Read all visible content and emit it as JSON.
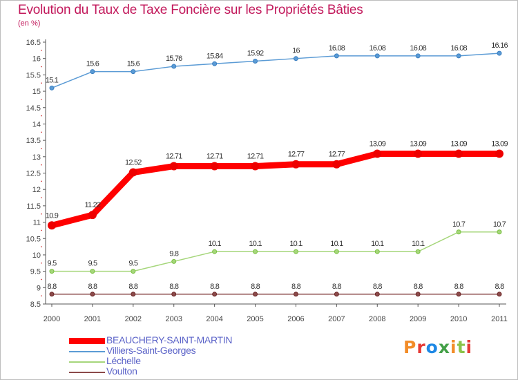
{
  "colors": {
    "title": "#c2185b",
    "legend_text": "#5b63c8",
    "axis": "#555555",
    "grid_tick": "#cc2222",
    "logo": [
      "#f28c28",
      "#e53935",
      "#1e88e5",
      "#43a047",
      "#f28c28",
      "#8bc34a",
      "#e53935"
    ]
  },
  "logo": {
    "text": "Proxiti",
    "letters": [
      "P",
      "r",
      "o",
      "x",
      "i",
      "t",
      "i"
    ]
  },
  "chart_data": {
    "type": "line",
    "title": "Evolution du Taux de Taxe Foncière sur les Propriétés Bâties",
    "ylabel": "(en %)",
    "xlabel": "",
    "ylim": [
      8.5,
      16.5
    ],
    "yticks": [
      8.5,
      9,
      9.5,
      10,
      10.5,
      11,
      11.5,
      12,
      12.5,
      13,
      13.5,
      14,
      14.5,
      15,
      15.5,
      16,
      16.5
    ],
    "ytick_labels": [
      "8.5",
      "9",
      "9.5",
      "10",
      "10.5",
      "11",
      "11.5",
      "12",
      "12.5",
      "13",
      "13.5",
      "14",
      "14.5",
      "15",
      "15.5",
      "16",
      "16.5"
    ],
    "categories": [
      "2000",
      "2001",
      "2002",
      "2003",
      "2004",
      "2005",
      "2006",
      "2007",
      "2008",
      "2009",
      "2010",
      "2011"
    ],
    "series": [
      {
        "name": "Villiers-Saint-Georges",
        "color": "#5b9bd5",
        "marker": "#3a7fc1",
        "values": [
          15.1,
          15.6,
          15.6,
          15.76,
          15.84,
          15.92,
          16,
          16.08,
          16.08,
          16.08,
          16.08,
          16.16
        ],
        "labels": [
          "15.1",
          "15.6",
          "15.6",
          "15.76",
          "15.84",
          "15.92",
          "16",
          "16.08",
          "16.08",
          "16.08",
          "16.08",
          "16.16"
        ]
      },
      {
        "name": "BEAUCHERY-SAINT-MARTIN",
        "color": "#ff0000",
        "marker": "#ee0000",
        "values": [
          10.9,
          11.22,
          12.52,
          12.71,
          12.71,
          12.71,
          12.77,
          12.77,
          13.09,
          13.09,
          13.09,
          13.09
        ],
        "labels": [
          "10.9",
          "11.22",
          "12.52",
          "12.71",
          "12.71",
          "12.71",
          "12.77",
          "12.77",
          "13.09",
          "13.09",
          "13.09",
          "13.09"
        ]
      },
      {
        "name": "Léchelle",
        "color": "#a5d67a",
        "marker": "#7ac142",
        "values": [
          9.5,
          9.5,
          9.5,
          9.8,
          10.1,
          10.1,
          10.1,
          10.1,
          10.1,
          10.1,
          10.7,
          10.7
        ],
        "labels": [
          "9.5",
          "9.5",
          "9.5",
          "9.8",
          "10.1",
          "10.1",
          "10.1",
          "10.1",
          "10.1",
          "10.1",
          "10.7",
          "10.7"
        ]
      },
      {
        "name": "Voulton",
        "color": "#8b4a4a",
        "marker": "#6b2424",
        "values": [
          8.8,
          8.8,
          8.8,
          8.8,
          8.8,
          8.8,
          8.8,
          8.8,
          8.8,
          8.8,
          8.8,
          8.8
        ],
        "labels": [
          "8.8",
          "8.8",
          "8.8",
          "8.8",
          "8.8",
          "8.8",
          "8.8",
          "8.8",
          "8.8",
          "8.8",
          "8.8",
          "8.8"
        ]
      }
    ],
    "legend": [
      {
        "name": "BEAUCHERY-SAINT-MARTIN",
        "color": "#ff0000",
        "thick": true
      },
      {
        "name": "Villiers-Saint-Georges",
        "color": "#5b9bd5",
        "thick": false
      },
      {
        "name": "Léchelle",
        "color": "#a5d67a",
        "thick": false
      },
      {
        "name": "Voulton",
        "color": "#8b4a4a",
        "thick": false
      }
    ],
    "legend_position": "bottom-left",
    "grid": false
  }
}
